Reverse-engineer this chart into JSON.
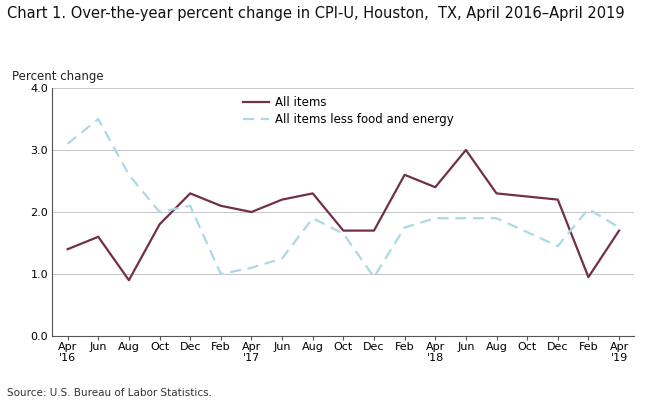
{
  "title": "Chart 1. Over-the-year percent change in CPI-U, Houston,  TX, April 2016–April 2019",
  "ylabel": "Percent change",
  "source": "Source: U.S. Bureau of Labor Statistics.",
  "ylim": [
    0.0,
    4.0
  ],
  "yticks": [
    0.0,
    1.0,
    2.0,
    3.0,
    4.0
  ],
  "x_labels": [
    "Apr\n'16",
    "Jun",
    "Aug",
    "Oct",
    "Dec",
    "Feb",
    "Apr\n'17",
    "Jun",
    "Aug",
    "Oct",
    "Dec",
    "Feb",
    "Apr\n'18",
    "Jun",
    "Aug",
    "Oct",
    "Dec",
    "Feb",
    "Apr\n'19"
  ],
  "all_items": [
    1.4,
    1.6,
    0.9,
    1.8,
    2.3,
    2.1,
    2.0,
    2.2,
    2.3,
    1.7,
    1.7,
    2.6,
    2.4,
    3.0,
    2.3,
    2.25,
    2.2,
    0.95,
    1.7
  ],
  "all_items_less": [
    3.1,
    3.5,
    2.6,
    2.0,
    2.1,
    1.0,
    1.1,
    1.25,
    1.9,
    1.65,
    0.95,
    1.75,
    1.9,
    1.9,
    1.9,
    null,
    1.45,
    2.05,
    1.75
  ],
  "all_items_color": "#722F4A",
  "all_items_less_color": "#ADD8E6",
  "background_color": "#ffffff",
  "grid_color": "#bbbbbb",
  "title_fontsize": 10.5,
  "label_fontsize": 8.5,
  "tick_fontsize": 8.0,
  "legend_fontsize": 8.5,
  "left_spine_color": "#555555"
}
